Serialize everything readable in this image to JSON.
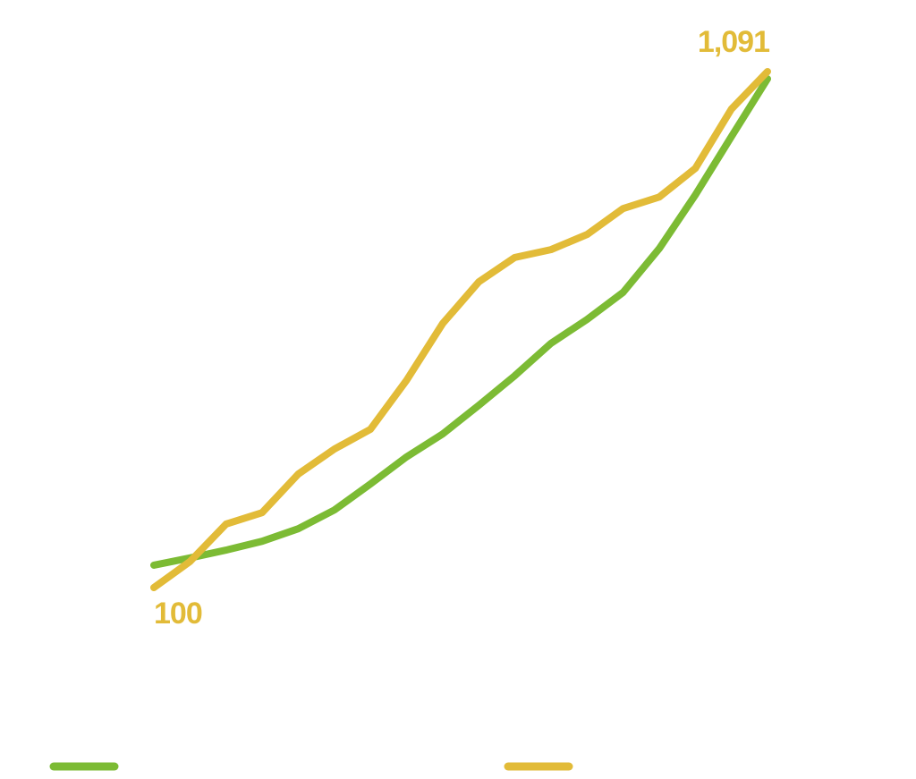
{
  "chart_data": {
    "type": "line",
    "categories": [
      null,
      null,
      null,
      null,
      null,
      null,
      null,
      null,
      null,
      null,
      null,
      null,
      null,
      null,
      null,
      null,
      null,
      null
    ],
    "series": [
      {
        "color": "#7cbb34",
        "values": [
          143,
          157,
          172,
          189,
          213,
          249,
          299,
          351,
          395,
          450,
          507,
          569,
          615,
          667,
          751,
          854,
          966,
          1077
        ]
      },
      {
        "color": "#e2bb38",
        "values": [
          100,
          150,
          222,
          244,
          318,
          366,
          404,
          498,
          607,
          687,
          734,
          749,
          778,
          828,
          850,
          905,
          1019,
          1091
        ],
        "value_labels": [
          "100",
          null,
          null,
          null,
          null,
          null,
          null,
          null,
          null,
          null,
          null,
          null,
          null,
          null,
          null,
          null,
          null,
          "1,091"
        ]
      }
    ],
    "ylim": [
      100,
      1091
    ]
  }
}
